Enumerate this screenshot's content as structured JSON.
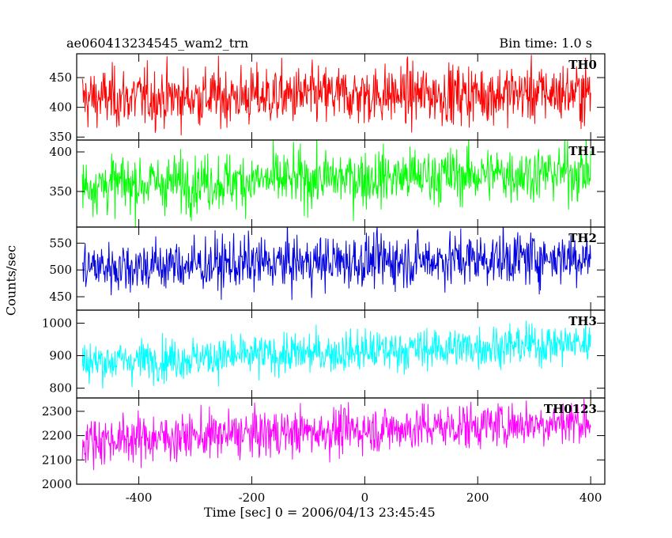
{
  "header": {
    "left": "ae060413234545_wam2_trn",
    "right": "Bin time: 1.0 s"
  },
  "chart_data": {
    "type": "line",
    "x_label": "Time [sec] 0 = 2006/04/13 23:45:45",
    "y_label": "Counts/sec",
    "x_range": [
      -510,
      425
    ],
    "x_ticks": [
      "-400",
      "-200",
      "0",
      "200",
      "400"
    ],
    "x_tick_values": [
      -400,
      -200,
      0,
      200,
      400
    ],
    "bin_time_s": 1.0,
    "panels": [
      {
        "name": "TH0",
        "color": "#ff0000",
        "y_range": [
          345,
          490
        ],
        "y_ticks": [
          "350",
          "400",
          "450"
        ],
        "y_tick_values": [
          350,
          400,
          450
        ],
        "trend": {
          "start": 415,
          "end": 425
        },
        "noise_sd": 25,
        "x_data_range": [
          -500,
          400
        ]
      },
      {
        "name": "TH1",
        "color": "#00ff00",
        "y_range": [
          305,
          415
        ],
        "y_ticks": [
          "350",
          "400"
        ],
        "y_tick_values": [
          350,
          400
        ],
        "trend": {
          "start": 358,
          "end": 375
        },
        "noise_sd": 18,
        "x_data_range": [
          -500,
          400
        ]
      },
      {
        "name": "TH2",
        "color": "#0000e0",
        "y_range": [
          425,
          580
        ],
        "y_ticks": [
          "450",
          "500",
          "550"
        ],
        "y_tick_values": [
          450,
          500,
          550
        ],
        "trend": {
          "start": 505,
          "end": 525
        },
        "noise_sd": 25,
        "x_data_range": [
          -500,
          400
        ]
      },
      {
        "name": "TH3",
        "color": "#00ffff",
        "y_range": [
          770,
          1040
        ],
        "y_ticks": [
          "800",
          "900",
          "1000"
        ],
        "y_tick_values": [
          800,
          900,
          1000
        ],
        "trend": {
          "start": 880,
          "end": 940
        },
        "noise_sd": 32,
        "x_data_range": [
          -500,
          400
        ]
      },
      {
        "name": "TH0123",
        "color": "#ff00ff",
        "y_range": [
          2000,
          2355
        ],
        "y_ticks": [
          "2000",
          "2100",
          "2200",
          "2300"
        ],
        "y_tick_values": [
          2000,
          2100,
          2200,
          2300
        ],
        "trend": {
          "start": 2180,
          "end": 2260
        },
        "noise_sd": 48,
        "x_data_range": [
          -500,
          400
        ]
      }
    ]
  }
}
